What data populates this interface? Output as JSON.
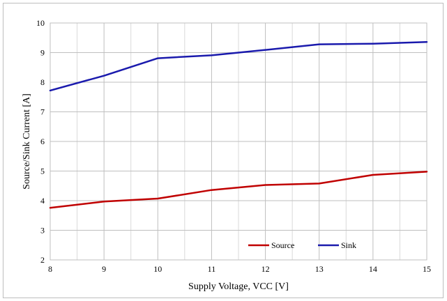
{
  "chart_data": {
    "type": "line",
    "title": "",
    "xlabel": "Supply Voltage, VCC [V]",
    "ylabel": "Source/Sink Current  [A]",
    "x": [
      8,
      9,
      10,
      11,
      12,
      13,
      14,
      15
    ],
    "xlim": [
      8,
      15
    ],
    "ylim": [
      2,
      10
    ],
    "x_ticks": [
      "8",
      "9",
      "10",
      "11",
      "12",
      "13",
      "14",
      "15"
    ],
    "y_ticks": [
      "2",
      "3",
      "4",
      "5",
      "6",
      "7",
      "8",
      "9",
      "10"
    ],
    "grid": true,
    "legend_position": "bottom-right",
    "series": [
      {
        "name": "Source",
        "color": "#c00000",
        "values": [
          3.76,
          3.97,
          4.07,
          4.36,
          4.53,
          4.58,
          4.87,
          4.98
        ]
      },
      {
        "name": "Sink",
        "color": "#1a1aad",
        "values": [
          7.72,
          8.22,
          8.81,
          8.91,
          9.09,
          9.28,
          9.3,
          9.36
        ]
      }
    ]
  }
}
